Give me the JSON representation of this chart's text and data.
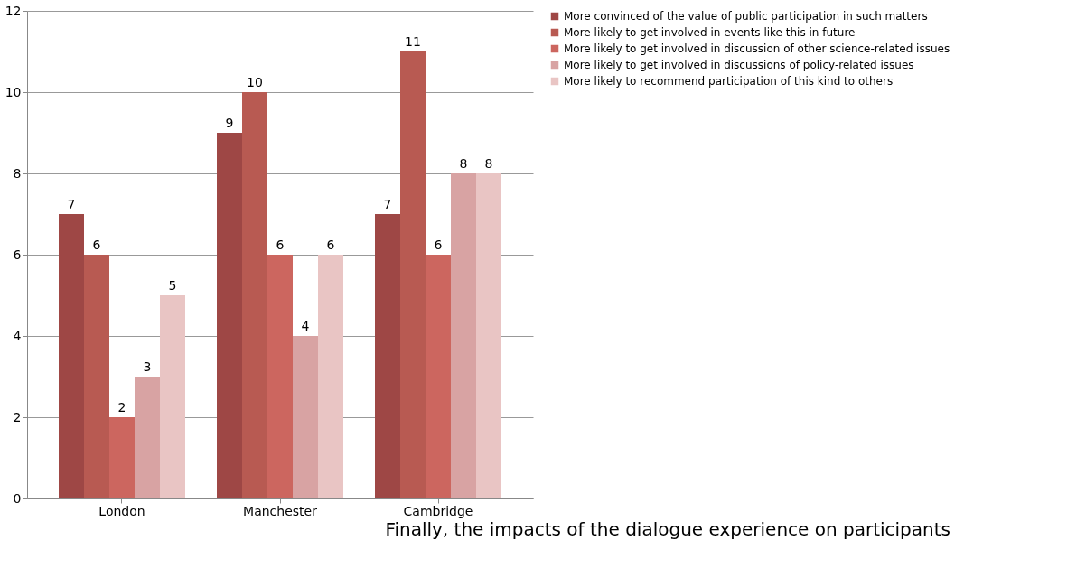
{
  "chart_data": {
    "type": "bar",
    "categories": [
      "London",
      "Manchester",
      "Cambridge"
    ],
    "series": [
      {
        "name": "More convinced of the value of public participation in such matters",
        "color": "#9e4745",
        "values": [
          7,
          9,
          7
        ]
      },
      {
        "name": "More likely to get involved in events like this in future",
        "color": "#b85a52",
        "values": [
          6,
          10,
          11
        ]
      },
      {
        "name": "More likely to get involved in discussion of other science-related issues",
        "color": "#cc665f",
        "values": [
          2,
          6,
          6
        ]
      },
      {
        "name": "More likely to get involved in discussions of policy-related issues",
        "color": "#d8a3a3",
        "values": [
          3,
          4,
          8
        ]
      },
      {
        "name": "More likely to recommend participation of this kind to others",
        "color": "#e9c5c4",
        "values": [
          5,
          6,
          8
        ]
      }
    ],
    "ylim": [
      0,
      12
    ],
    "yticks": [
      0,
      2,
      4,
      6,
      8,
      10,
      12
    ],
    "grid": "y",
    "legend": "right",
    "data_labels": true,
    "annotations": [
      "Finally, the impacts of the dialogue experience on participants"
    ]
  }
}
